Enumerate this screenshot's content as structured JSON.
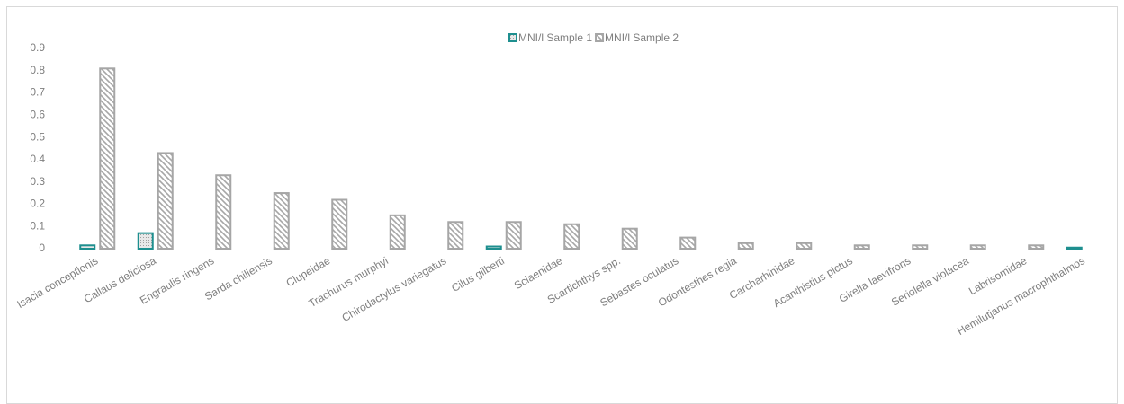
{
  "chart_data": {
    "type": "bar",
    "categories": [
      "Isacia conceptionis",
      "Callaus deliciosa",
      "Engraulis ringens",
      "Sarda chiliensis",
      "Clupeidae",
      "Trachurus murphyi",
      "Chirodactylus variegatus",
      "Cilus gilberti",
      "Sciaenidae",
      "Scartichthys spp.",
      "Sebastes oculatus",
      "Odontesthes regia",
      "Carcharhinidae",
      "Acanthistius pictus",
      "Girella laevifrons",
      "Seriolella violacea",
      "Labrisomidae",
      "Hemilutjanus macrophthalmos"
    ],
    "series": [
      {
        "name": "MNI/l Sample 1",
        "color": "#1e8f8f",
        "values": [
          0.015,
          0.07,
          0,
          0,
          0,
          0,
          0,
          0.01,
          0,
          0,
          0,
          0,
          0,
          0,
          0,
          0,
          0,
          0.005
        ]
      },
      {
        "name": "MNI/l Sample 2",
        "color": "#a6a6a6",
        "values": [
          0.81,
          0.43,
          0.33,
          0.25,
          0.22,
          0.15,
          0.12,
          0.12,
          0.11,
          0.09,
          0.05,
          0.025,
          0.025,
          0.015,
          0.015,
          0.015,
          0.015,
          0
        ]
      }
    ],
    "ylim": [
      0,
      0.9
    ],
    "yticks": [
      0,
      0.1,
      0.2,
      0.3,
      0.4,
      0.5,
      0.6,
      0.7,
      0.8,
      0.9
    ],
    "grid": false,
    "legend": "top"
  }
}
